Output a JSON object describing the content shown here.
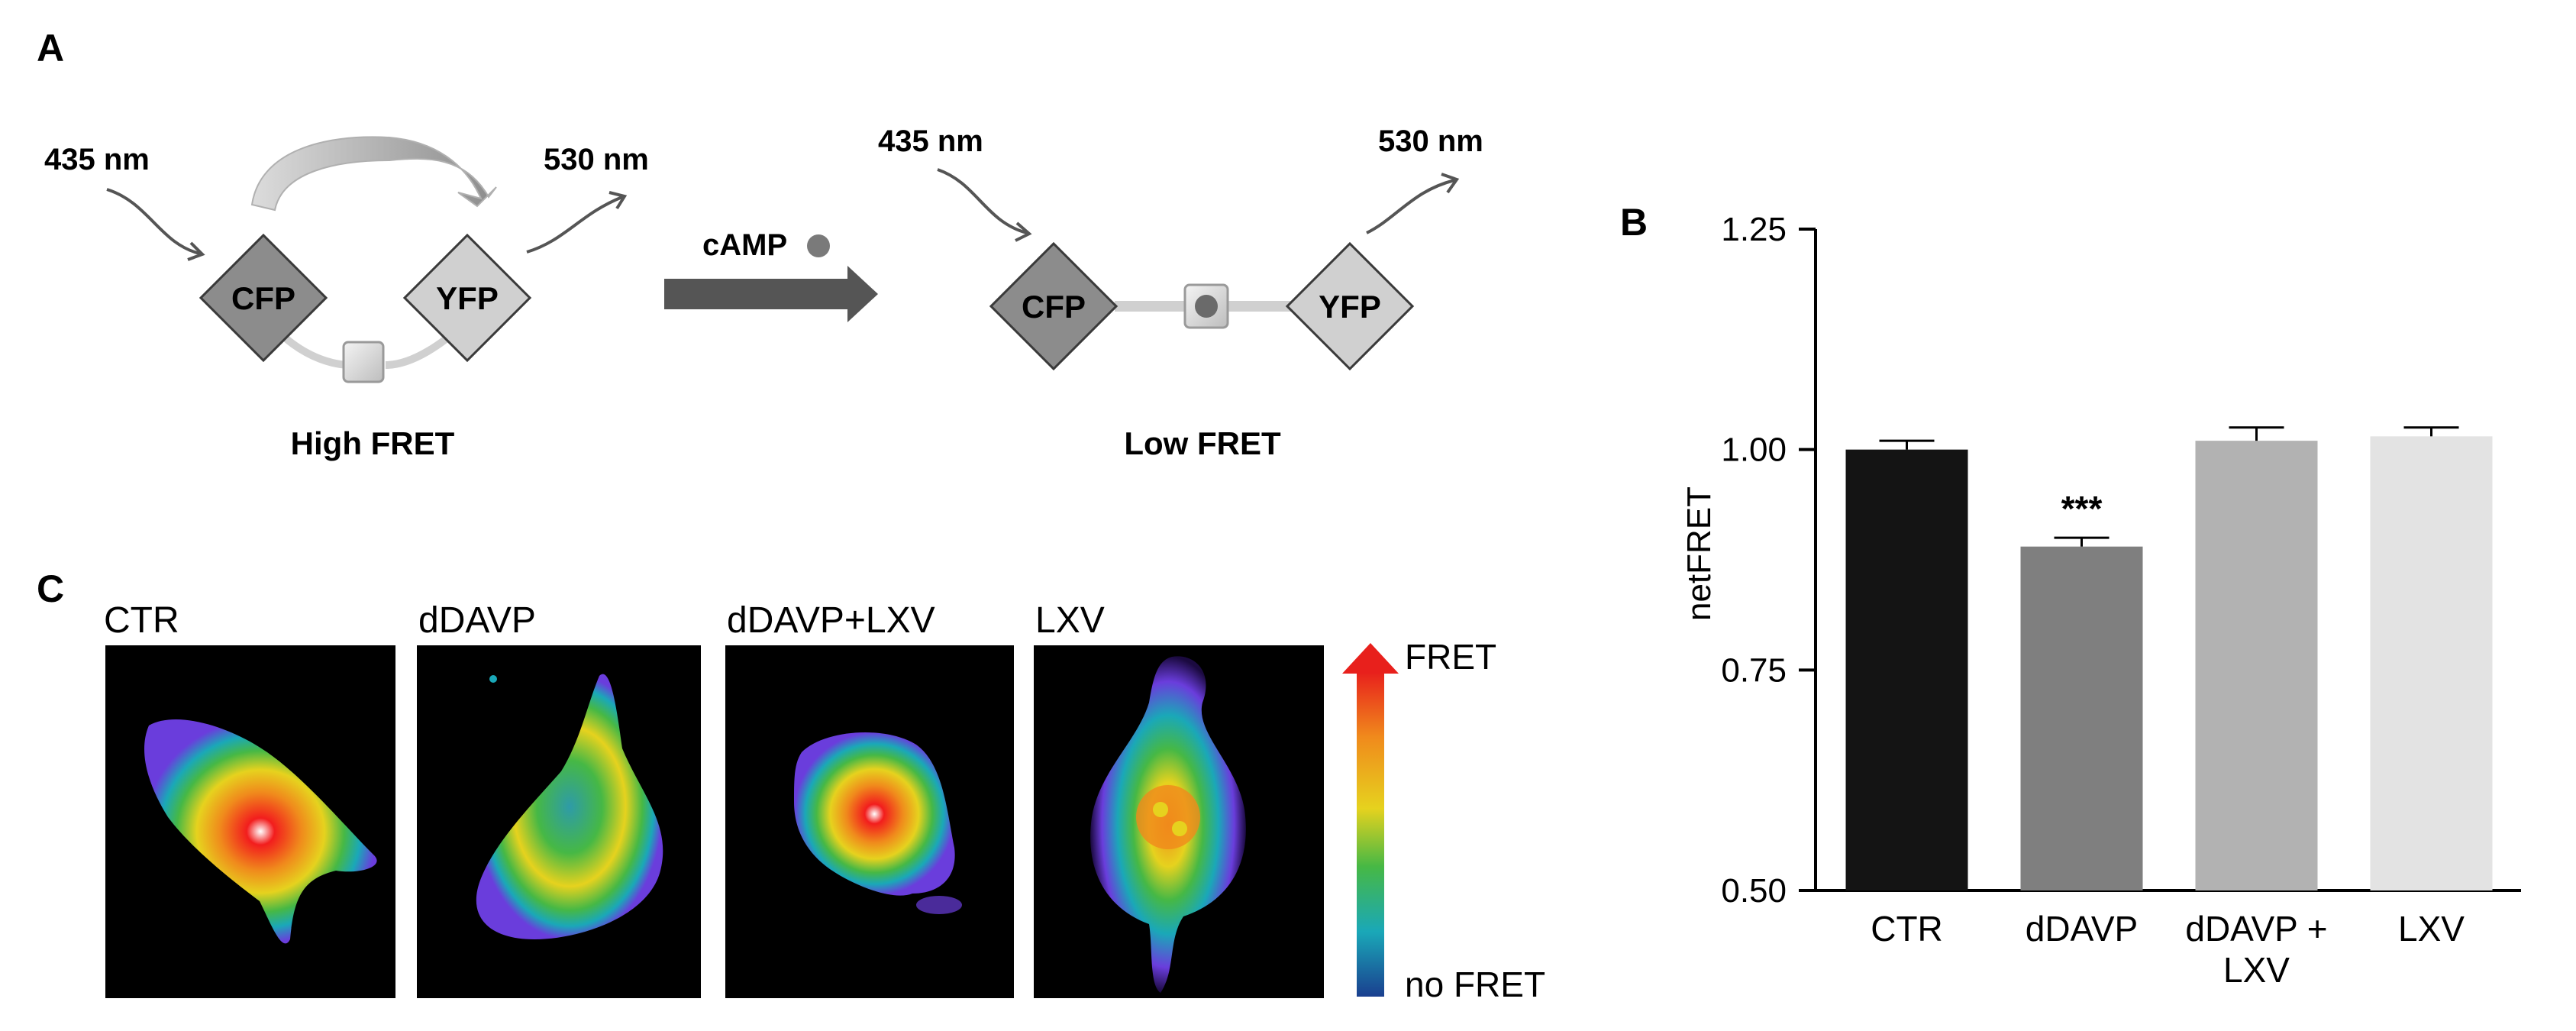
{
  "panel_a": {
    "letter": "A",
    "high": {
      "in_label": "435 nm",
      "out_label": "530 nm",
      "donor": "CFP",
      "acceptor": "YFP",
      "caption": "High FRET"
    },
    "ligand": "cAMP",
    "low": {
      "in_label": "435 nm",
      "out_label": "530 nm",
      "donor": "CFP",
      "acceptor": "YFP",
      "caption": "Low FRET"
    }
  },
  "panel_c": {
    "letter": "C",
    "images": [
      {
        "label": "CTR"
      },
      {
        "label": "dDAVP"
      },
      {
        "label": "dDAVP+LXV"
      },
      {
        "label": "LXV"
      }
    ],
    "scale_top": "FRET",
    "scale_bottom": "no FRET"
  },
  "chart_data": {
    "panel_letter": "B",
    "type": "bar",
    "categories": [
      "CTR",
      "dDAVP",
      "dDAVP + LXV",
      "LXV"
    ],
    "category_lines": [
      [
        "CTR"
      ],
      [
        "dDAVP"
      ],
      [
        "dDAVP +",
        "LXV"
      ],
      [
        "LXV"
      ]
    ],
    "values": [
      1.0,
      0.89,
      1.01,
      1.015
    ],
    "errors": [
      0.01,
      0.01,
      0.015,
      0.01
    ],
    "bar_colors": [
      "#141414",
      "#7f7f7f",
      "#b2b2b2",
      "#e3e3e3"
    ],
    "annotations": [
      {
        "category": "dDAVP",
        "text": "***"
      }
    ],
    "ylabel": "netFRET",
    "xlabel": "",
    "ylim": [
      0.5,
      1.25
    ],
    "yticks": [
      0.5,
      0.75,
      1.0,
      1.25
    ],
    "ytick_labels": [
      "0.50",
      "0.75",
      "1.00",
      "1.25"
    ],
    "grid": false
  }
}
